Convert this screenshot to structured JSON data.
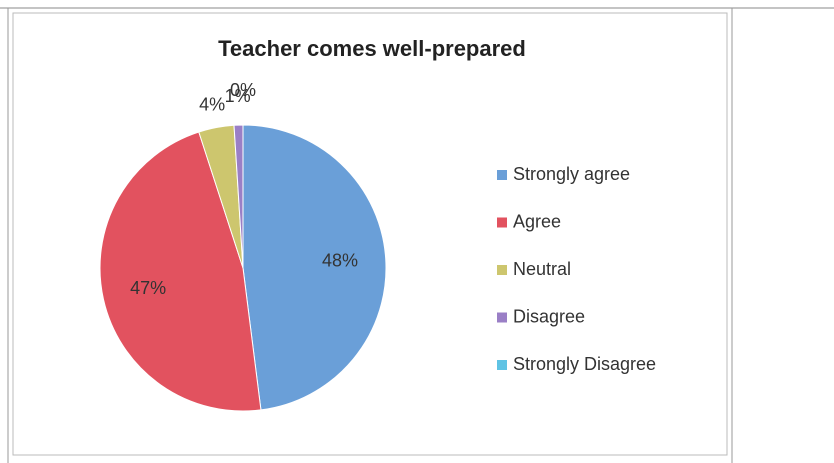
{
  "chart_data": {
    "type": "pie",
    "title": "Teacher comes well-prepared",
    "categories": [
      "Strongly agree",
      "Agree",
      "Neutral",
      "Disagree",
      "Strongly Disagree"
    ],
    "values": [
      48,
      47,
      4,
      1,
      0
    ],
    "value_labels": [
      "48%",
      "47%",
      "4%",
      "1%",
      "0%"
    ],
    "colors": [
      "#6a9fd8",
      "#e2525f",
      "#cdc66e",
      "#9a7fc6",
      "#5fc3e4"
    ],
    "legend": "right"
  }
}
